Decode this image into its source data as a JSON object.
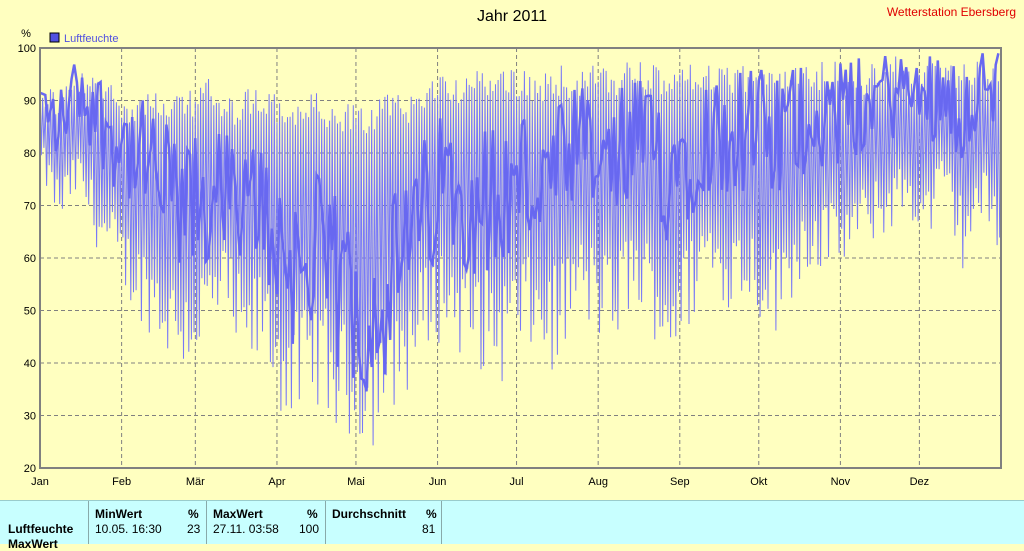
{
  "header": {
    "title": "Jahr 2011",
    "station": "Wetterstation Ebersberg"
  },
  "chart_data": {
    "type": "line",
    "title": "Jahr 2011",
    "ylabel": "%",
    "ylim": [
      20,
      100
    ],
    "yticks": [
      "20",
      "30",
      "40",
      "50",
      "60",
      "70",
      "80",
      "90",
      "100"
    ],
    "months": [
      "Jan",
      "Feb",
      "Mär",
      "Apr",
      "Mai",
      "Jun",
      "Jul",
      "Aug",
      "Sep",
      "Okt",
      "Nov",
      "Dez"
    ],
    "legend": "Luftfeuchte",
    "grid": true,
    "color_thin": "#7878f8",
    "color_thick": "#6868f0",
    "series": [
      {
        "name": "Luftfeuchte",
        "x_unit": "day of year",
        "x": [
          1,
          8,
          15,
          22,
          29,
          36,
          43,
          50,
          57,
          64,
          71,
          78,
          85,
          92,
          99,
          106,
          113,
          120,
          127,
          134,
          141,
          148,
          155,
          162,
          169,
          176,
          183,
          190,
          197,
          204,
          211,
          218,
          225,
          232,
          239,
          246,
          253,
          260,
          267,
          274,
          281,
          288,
          295,
          302,
          309,
          316,
          323,
          330,
          337,
          344,
          351,
          358,
          365
        ],
        "max": [
          95,
          92,
          96,
          95,
          94,
          91,
          93,
          90,
          92,
          95,
          90,
          92,
          93,
          91,
          90,
          92,
          88,
          90,
          89,
          92,
          91,
          95,
          96,
          95,
          96,
          97,
          96,
          95,
          97,
          96,
          97,
          96,
          98,
          97,
          96,
          97,
          98,
          96,
          97,
          97,
          96,
          98,
          97,
          98,
          96,
          97,
          98,
          99,
          98,
          99,
          97,
          99,
          98
        ],
        "mean": [
          90,
          85,
          93,
          88,
          84,
          80,
          76,
          72,
          68,
          70,
          74,
          65,
          72,
          62,
          58,
          60,
          55,
          52,
          50,
          55,
          62,
          70,
          75,
          73,
          72,
          70,
          75,
          74,
          73,
          80,
          78,
          76,
          82,
          80,
          78,
          80,
          84,
          83,
          85,
          83,
          82,
          86,
          88,
          87,
          88,
          90,
          91,
          92,
          90,
          93,
          88,
          94,
          92
        ],
        "min": [
          75,
          66,
          72,
          62,
          55,
          50,
          45,
          40,
          38,
          42,
          48,
          35,
          40,
          30,
          28,
          32,
          26,
          25,
          24,
          30,
          35,
          42,
          45,
          40,
          38,
          36,
          42,
          40,
          38,
          48,
          45,
          42,
          50,
          46,
          40,
          44,
          55,
          50,
          52,
          48,
          45,
          55,
          58,
          56,
          60,
          62,
          65,
          68,
          62,
          70,
          58,
          66,
          60
        ]
      }
    ]
  },
  "stats": {
    "rows": [
      "Luftfeuchte",
      "MaxWert"
    ],
    "min": {
      "head": "MinWert",
      "unit": "%",
      "date": "10.05.  16:30",
      "value": "23"
    },
    "max": {
      "head": "MaxWert",
      "unit": "%",
      "date": "27.11.  03:58",
      "value": "100"
    },
    "avg": {
      "head": "Durchschnitt",
      "unit": "%",
      "value": "81"
    }
  }
}
